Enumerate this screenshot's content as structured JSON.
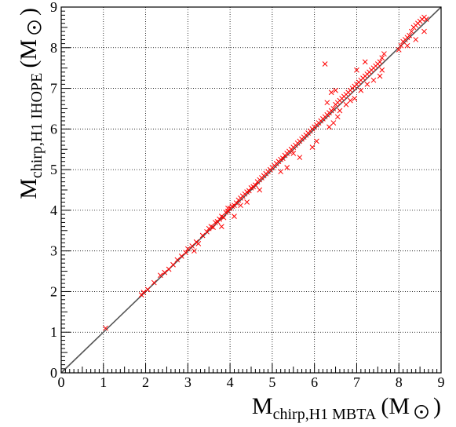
{
  "chart_data": {
    "type": "scatter",
    "title": "",
    "xlabel": {
      "main": "M",
      "subscript": "chirp,H1 MBTA",
      "unit_open": "(M",
      "unit_close": ")"
    },
    "ylabel": {
      "main": "M",
      "subscript": "chirp,H1 IHOPE",
      "unit_open": "(M",
      "unit_close": ")"
    },
    "xlim": [
      0,
      9
    ],
    "ylim": [
      0,
      9
    ],
    "x_ticks": [
      0,
      1,
      2,
      3,
      4,
      5,
      6,
      7,
      8,
      9
    ],
    "y_ticks": [
      0,
      1,
      2,
      3,
      4,
      5,
      6,
      7,
      8,
      9
    ],
    "x_tick_labels": [
      "0",
      "1",
      "2",
      "3",
      "4",
      "5",
      "6",
      "7",
      "8",
      "9"
    ],
    "y_tick_labels": [
      "0",
      "1",
      "2",
      "3",
      "4",
      "5",
      "6",
      "7",
      "8",
      "9"
    ],
    "grid": true,
    "marker": "x",
    "marker_color": "#ff0000",
    "reference_line": {
      "type": "y=x",
      "color": "#555555"
    },
    "series": [
      {
        "points": [
          [
            1.05,
            1.1
          ],
          [
            1.9,
            1.92
          ],
          [
            1.95,
            1.98
          ],
          [
            2.05,
            2.05
          ],
          [
            2.2,
            2.22
          ],
          [
            2.35,
            2.4
          ],
          [
            2.45,
            2.47
          ],
          [
            2.55,
            2.55
          ],
          [
            2.65,
            2.66
          ],
          [
            2.75,
            2.78
          ],
          [
            2.85,
            2.87
          ],
          [
            2.95,
            2.96
          ],
          [
            3.0,
            3.05
          ],
          [
            3.1,
            3.12
          ],
          [
            3.2,
            3.22
          ],
          [
            3.25,
            3.18
          ],
          [
            3.35,
            3.38
          ],
          [
            3.45,
            3.47
          ],
          [
            3.5,
            3.55
          ],
          [
            3.55,
            3.6
          ],
          [
            3.6,
            3.58
          ],
          [
            3.65,
            3.7
          ],
          [
            3.7,
            3.72
          ],
          [
            3.75,
            3.78
          ],
          [
            3.8,
            3.85
          ],
          [
            3.85,
            3.82
          ],
          [
            3.9,
            3.95
          ],
          [
            3.95,
            3.98
          ],
          [
            3.95,
            4.05
          ],
          [
            4.0,
            4.05
          ],
          [
            4.05,
            4.1
          ],
          [
            4.1,
            4.12
          ],
          [
            4.15,
            4.18
          ],
          [
            4.2,
            4.25
          ],
          [
            4.25,
            4.3
          ],
          [
            4.25,
            4.12
          ],
          [
            4.3,
            4.35
          ],
          [
            4.35,
            4.4
          ],
          [
            4.4,
            4.45
          ],
          [
            4.45,
            4.48
          ],
          [
            4.5,
            4.55
          ],
          [
            4.55,
            4.58
          ],
          [
            4.6,
            4.62
          ],
          [
            4.65,
            4.7
          ],
          [
            4.7,
            4.75
          ],
          [
            4.75,
            4.8
          ],
          [
            4.8,
            4.85
          ],
          [
            4.85,
            4.9
          ],
          [
            4.9,
            4.95
          ],
          [
            4.95,
            5.0
          ],
          [
            5.0,
            5.05
          ],
          [
            5.05,
            5.1
          ],
          [
            5.1,
            5.15
          ],
          [
            5.15,
            5.2
          ],
          [
            5.2,
            5.25
          ],
          [
            5.25,
            5.28
          ],
          [
            5.3,
            5.35
          ],
          [
            5.35,
            5.4
          ],
          [
            5.4,
            5.45
          ],
          [
            5.45,
            5.5
          ],
          [
            5.5,
            5.55
          ],
          [
            5.5,
            5.4
          ],
          [
            5.55,
            5.6
          ],
          [
            5.6,
            5.65
          ],
          [
            5.65,
            5.7
          ],
          [
            5.7,
            5.75
          ],
          [
            5.75,
            5.8
          ],
          [
            5.8,
            5.85
          ],
          [
            5.85,
            5.9
          ],
          [
            5.9,
            5.95
          ],
          [
            5.95,
            6.0
          ],
          [
            6.0,
            6.05
          ],
          [
            6.05,
            6.1
          ],
          [
            6.1,
            6.15
          ],
          [
            6.15,
            6.2
          ],
          [
            6.2,
            6.25
          ],
          [
            6.25,
            6.3
          ],
          [
            6.3,
            6.35
          ],
          [
            6.35,
            6.4
          ],
          [
            6.4,
            6.45
          ],
          [
            6.45,
            6.5
          ],
          [
            6.5,
            6.6
          ],
          [
            6.55,
            6.65
          ],
          [
            6.6,
            6.7
          ],
          [
            6.65,
            6.75
          ],
          [
            6.7,
            6.8
          ],
          [
            6.75,
            6.85
          ],
          [
            6.8,
            6.9
          ],
          [
            6.85,
            6.95
          ],
          [
            6.9,
            7.0
          ],
          [
            6.95,
            7.05
          ],
          [
            7.0,
            7.1
          ],
          [
            7.05,
            7.15
          ],
          [
            7.1,
            7.2
          ],
          [
            7.15,
            7.25
          ],
          [
            7.2,
            7.3
          ],
          [
            7.25,
            7.35
          ],
          [
            7.3,
            7.4
          ],
          [
            7.35,
            7.45
          ],
          [
            7.4,
            7.5
          ],
          [
            7.45,
            7.55
          ],
          [
            7.5,
            7.6
          ],
          [
            7.55,
            7.65
          ],
          [
            7.6,
            7.75
          ],
          [
            7.65,
            7.85
          ],
          [
            8.05,
            8.05
          ],
          [
            8.1,
            8.15
          ],
          [
            8.15,
            8.2
          ],
          [
            8.2,
            8.25
          ],
          [
            8.25,
            8.3
          ],
          [
            8.3,
            8.4
          ],
          [
            8.35,
            8.5
          ],
          [
            8.4,
            8.55
          ],
          [
            8.45,
            8.6
          ],
          [
            8.5,
            8.65
          ],
          [
            8.55,
            8.7
          ],
          [
            8.6,
            8.75
          ],
          [
            8.65,
            8.7
          ],
          [
            5.2,
            4.95
          ],
          [
            5.35,
            5.05
          ],
          [
            5.65,
            5.3
          ],
          [
            5.95,
            5.55
          ],
          [
            6.05,
            5.7
          ],
          [
            6.25,
            7.6
          ],
          [
            6.35,
            6.05
          ],
          [
            6.45,
            6.15
          ],
          [
            6.55,
            6.3
          ],
          [
            6.6,
            6.45
          ],
          [
            6.75,
            6.6
          ],
          [
            6.85,
            6.7
          ],
          [
            6.95,
            6.75
          ],
          [
            7.1,
            6.95
          ],
          [
            7.25,
            7.1
          ],
          [
            7.4,
            7.2
          ],
          [
            7.55,
            7.3
          ],
          [
            7.6,
            7.45
          ],
          [
            8.0,
            7.95
          ],
          [
            8.2,
            8.05
          ],
          [
            8.4,
            8.2
          ],
          [
            8.6,
            8.4
          ],
          [
            6.4,
            6.9
          ],
          [
            6.5,
            6.95
          ],
          [
            6.3,
            6.65
          ],
          [
            7.0,
            7.45
          ],
          [
            7.2,
            7.65
          ],
          [
            3.8,
            3.6
          ],
          [
            4.1,
            3.85
          ],
          [
            4.4,
            4.2
          ],
          [
            4.7,
            4.5
          ],
          [
            3.15,
            3.0
          ]
        ]
      }
    ]
  }
}
